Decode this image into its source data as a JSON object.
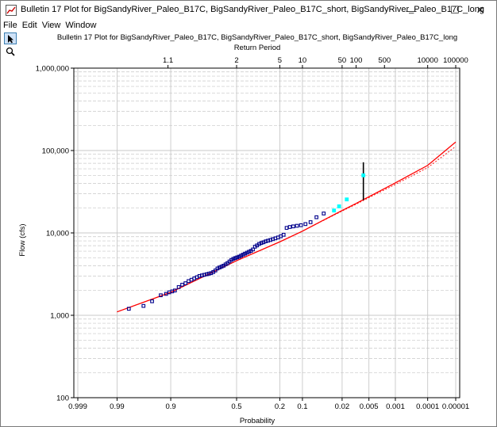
{
  "window": {
    "title": "Bulletin 17 Plot for BigSandyRiver_Paleo_B17C, BigSandyRiver_Paleo_B17C_short, BigSandyRiver_Paleo_B17C_long",
    "controls": {
      "minimize": "—",
      "maximize": "☐",
      "close": "✕"
    },
    "icon": "chart-window-icon"
  },
  "menu": {
    "items": [
      "File",
      "Edit",
      "View",
      "Window"
    ]
  },
  "toolbar": {
    "tools": [
      {
        "name": "pointer-tool",
        "icon": "arrow-pointer-icon",
        "selected": true
      },
      {
        "name": "zoom-tool",
        "icon": "magnifier-icon",
        "selected": false
      }
    ]
  },
  "colors": {
    "fitted_curve": "#ff0000",
    "observed_points": "#00008b",
    "historic_points": "#00ffff",
    "uncertainty_bar": "#000000",
    "grid": "#c8c8c8"
  },
  "chart_data": {
    "type": "scatter",
    "title": "Bulletin 17 Plot for BigSandyRiver_Paleo_B17C, BigSandyRiver_Paleo_B17C_short, BigSandyRiver_Paleo_B17C_long",
    "xlabel": "Probability",
    "ylabel": "Flow (cfs)",
    "x2label": "Return Period",
    "x_scale": "normal-probability (exceedance, decreasing to the right)",
    "y_scale": "log",
    "ylim": [
      100,
      1000000
    ],
    "xlim": [
      0.999,
      1e-05
    ],
    "grid": true,
    "legend": "none",
    "x_ticks": [
      0.999,
      0.99,
      0.9,
      0.5,
      0.2,
      0.1,
      0.02,
      0.005,
      0.001,
      0.0001,
      1e-05
    ],
    "x_tick_labels": [
      "0.999",
      "0.99",
      "0.9",
      "0.5",
      "0.2",
      "0.1",
      "0.02",
      "0.005",
      "0.001",
      "0.0001",
      "0.00001"
    ],
    "x2_ticks": [
      1.1,
      2,
      5,
      10,
      50,
      100,
      500,
      10000,
      100000
    ],
    "x2_tick_labels": [
      "1.1",
      "2",
      "5",
      "10",
      "50",
      "100",
      "500",
      "10000",
      "100000"
    ],
    "y_ticks": [
      100,
      1000,
      10000,
      100000,
      1000000
    ],
    "y_tick_labels": [
      "100",
      "1,000",
      "10,000",
      "100,000",
      "1,000,000"
    ],
    "series": [
      {
        "role": "fitted",
        "style": "line",
        "color": "#ff0000",
        "points": [
          [
            0.99,
            1100
          ],
          [
            0.9,
            1900
          ],
          [
            0.5,
            4600
          ],
          [
            0.2,
            7800
          ],
          [
            0.1,
            10500
          ],
          [
            0.05,
            13800
          ],
          [
            0.02,
            18700
          ],
          [
            0.01,
            22800
          ],
          [
            0.005,
            27500
          ],
          [
            0.002,
            34500
          ],
          [
            0.001,
            40500
          ],
          [
            0.0001,
            66000
          ],
          [
            1e-05,
            127000
          ]
        ]
      },
      {
        "role": "fitted-alt",
        "style": "dotted",
        "color": "#ff0000",
        "points": [
          [
            0.99,
            1100
          ],
          [
            0.9,
            1900
          ],
          [
            0.5,
            4600
          ],
          [
            0.2,
            7800
          ],
          [
            0.1,
            10500
          ],
          [
            0.05,
            13700
          ],
          [
            0.02,
            18400
          ],
          [
            0.01,
            22300
          ],
          [
            0.005,
            26800
          ],
          [
            0.002,
            33300
          ],
          [
            0.001,
            38800
          ],
          [
            0.0001,
            62000
          ],
          [
            1e-05,
            112000
          ]
        ]
      },
      {
        "role": "observed",
        "style": "marker",
        "color": "#00008b",
        "points": [
          [
            0.982,
            1200
          ],
          [
            0.965,
            1300
          ],
          [
            0.95,
            1480
          ],
          [
            0.93,
            1750
          ],
          [
            0.915,
            1820
          ],
          [
            0.905,
            1900
          ],
          [
            0.895,
            1950
          ],
          [
            0.885,
            2000
          ],
          [
            0.87,
            2200
          ],
          [
            0.855,
            2350
          ],
          [
            0.84,
            2450
          ],
          [
            0.825,
            2600
          ],
          [
            0.81,
            2700
          ],
          [
            0.795,
            2800
          ],
          [
            0.78,
            2900
          ],
          [
            0.765,
            3000
          ],
          [
            0.75,
            3050
          ],
          [
            0.735,
            3100
          ],
          [
            0.72,
            3150
          ],
          [
            0.705,
            3200
          ],
          [
            0.69,
            3250
          ],
          [
            0.675,
            3350
          ],
          [
            0.66,
            3500
          ],
          [
            0.645,
            3700
          ],
          [
            0.63,
            3800
          ],
          [
            0.615,
            3900
          ],
          [
            0.6,
            4000
          ],
          [
            0.585,
            4150
          ],
          [
            0.57,
            4300
          ],
          [
            0.555,
            4500
          ],
          [
            0.54,
            4700
          ],
          [
            0.525,
            4850
          ],
          [
            0.51,
            4950
          ],
          [
            0.495,
            5050
          ],
          [
            0.48,
            5150
          ],
          [
            0.465,
            5300
          ],
          [
            0.45,
            5450
          ],
          [
            0.435,
            5600
          ],
          [
            0.42,
            5750
          ],
          [
            0.405,
            5900
          ],
          [
            0.39,
            6050
          ],
          [
            0.375,
            6300
          ],
          [
            0.36,
            6800
          ],
          [
            0.345,
            7050
          ],
          [
            0.33,
            7350
          ],
          [
            0.315,
            7550
          ],
          [
            0.3,
            7700
          ],
          [
            0.285,
            7900
          ],
          [
            0.27,
            8050
          ],
          [
            0.255,
            8200
          ],
          [
            0.24,
            8400
          ],
          [
            0.225,
            8600
          ],
          [
            0.21,
            8800
          ],
          [
            0.195,
            9100
          ],
          [
            0.18,
            9500
          ],
          [
            0.165,
            11500
          ],
          [
            0.15,
            11800
          ],
          [
            0.135,
            12000
          ],
          [
            0.12,
            12200
          ],
          [
            0.105,
            12400
          ],
          [
            0.09,
            12800
          ],
          [
            0.075,
            13500
          ],
          [
            0.06,
            15500
          ],
          [
            0.045,
            17200
          ]
        ]
      },
      {
        "role": "historic",
        "style": "marker",
        "color": "#00ffff",
        "points": [
          [
            0.029,
            18700
          ],
          [
            0.023,
            21000
          ],
          [
            0.016,
            25500
          ],
          [
            0.0068,
            50000
          ]
        ]
      }
    ],
    "uncertainty_bar": {
      "x": 0.0068,
      "low": 25000,
      "high": 72000
    }
  }
}
